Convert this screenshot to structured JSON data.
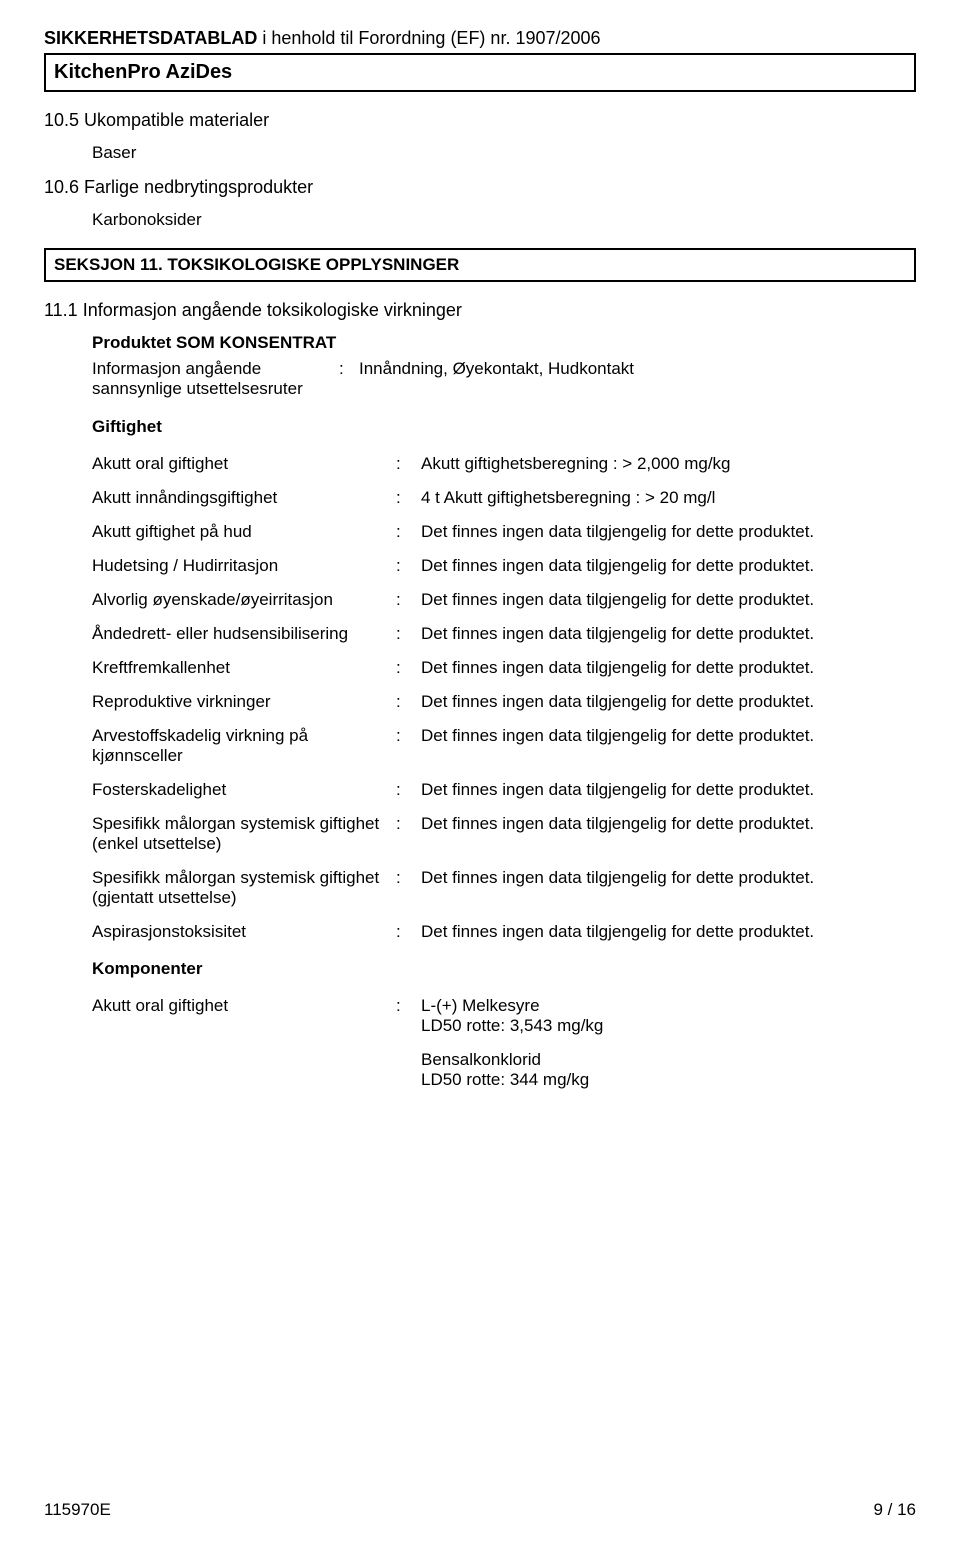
{
  "header": {
    "title_bold": "SIKKERHETSDATABLAD",
    "title_rest": " i henhold til Forordning (EF) nr. 1907/2006",
    "product_name": "KitchenPro AziDes"
  },
  "sections": {
    "s10_5_title": "10.5 Ukompatible materialer",
    "s10_5_value": "Baser",
    "s10_6_title": "10.6 Farlige nedbrytingsprodukter",
    "s10_6_value": "Karbonoksider",
    "box11": "SEKSJON 11. TOKSIKOLOGISKE OPPLYSNINGER",
    "s11_1_title": "11.1 Informasjon angående toksikologiske virkninger",
    "konsentrat_head": "Produktet SOM KONSENTRAT",
    "info_label": "Informasjon angående sannsynlige utsettelsesruter",
    "info_value": "Innåndning, Øyekontakt, Hudkontakt",
    "giftighet_head": "Giftighet",
    "komponenter_head": "Komponenter"
  },
  "rows": [
    {
      "label": "Akutt oral giftighet",
      "value": "Akutt giftighetsberegning : > 2,000 mg/kg"
    },
    {
      "label": "Akutt innåndingsgiftighet",
      "value": "4 t Akutt giftighetsberegning : > 20 mg/l"
    },
    {
      "label": "Akutt giftighet på hud",
      "value": "Det finnes ingen data tilgjengelig for dette produktet."
    },
    {
      "label": "Hudetsing / Hudirritasjon",
      "value": "Det finnes ingen data tilgjengelig for dette produktet."
    },
    {
      "label": "Alvorlig øyenskade/øyeirritasjon",
      "value": "Det finnes ingen data tilgjengelig for dette produktet."
    },
    {
      "label": "Åndedrett- eller hudsensibilisering",
      "value": "Det finnes ingen data tilgjengelig for dette produktet."
    },
    {
      "label": "Kreftfremkallenhet",
      "value": "Det finnes ingen data tilgjengelig for dette produktet."
    },
    {
      "label": "Reproduktive virkninger",
      "value": "Det finnes ingen data tilgjengelig for dette produktet."
    },
    {
      "label": "Arvestoffskadelig virkning på kjønnsceller",
      "value": "Det finnes ingen data tilgjengelig for dette produktet."
    },
    {
      "label": "Fosterskadelighet",
      "value": "Det finnes ingen data tilgjengelig for dette produktet."
    },
    {
      "label": "Spesifikk målorgan systemisk giftighet (enkel utsettelse)",
      "value": "Det finnes ingen data tilgjengelig for dette produktet."
    },
    {
      "label": "Spesifikk målorgan systemisk giftighet (gjentatt utsettelse)",
      "value": "Det finnes ingen data tilgjengelig for dette produktet."
    },
    {
      "label": "Aspirasjonstoksisitet",
      "value": "Det finnes ingen data tilgjengelig for dette produktet."
    }
  ],
  "components": {
    "label": "Akutt oral giftighet",
    "block1_line1": "L-(+) Melkesyre",
    "block1_line2": "LD50 rotte: 3,543 mg/kg",
    "block2_line1": "Bensalkonklorid",
    "block2_line2": "LD50 rotte: 344 mg/kg"
  },
  "footer": {
    "left": "115970E",
    "right": "9 / 16"
  }
}
